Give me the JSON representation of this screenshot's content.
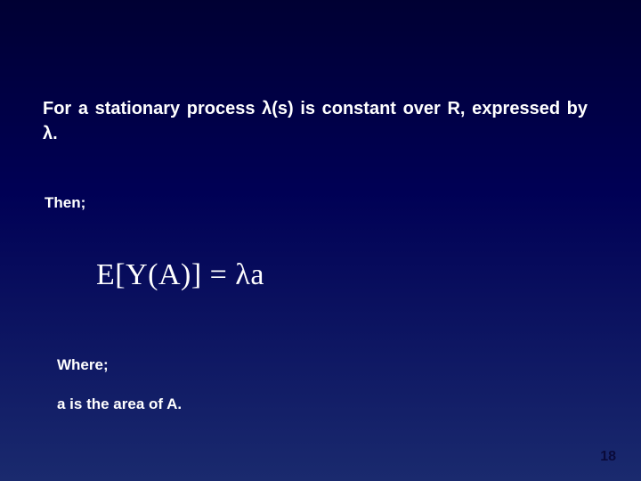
{
  "slide": {
    "main_text": "For a stationary process λ(s) is constant over R, expressed by λ.",
    "then_label": "Then;",
    "equation": "E[Y(A)] = λa",
    "where_label": "Where;",
    "area_text": "a is the area of A.",
    "page_number": "18"
  },
  "style": {
    "background_gradient_top": "#000033",
    "background_gradient_mid": "#000055",
    "background_gradient_bottom": "#1a2a6e",
    "text_color": "#ffffff",
    "main_fontsize": 20,
    "label_fontsize": 17,
    "equation_fontsize": 34,
    "equation_font": "Times New Roman",
    "body_font": "Arial",
    "page_number_color": "#0a0a3a"
  }
}
